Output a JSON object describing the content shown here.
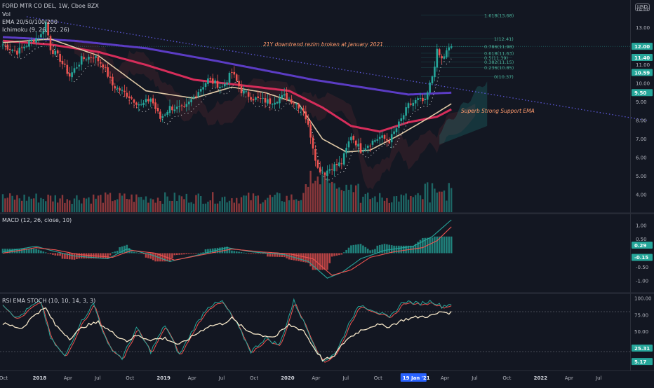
{
  "header": {
    "symbol": "FORD MTR CO DEL, 1W, Cboe BZX",
    "indicators": [
      "Vol",
      "EMA 20/50/100/200",
      "Ichimoku (9, 26, 52, 26)"
    ],
    "currency": "USD"
  },
  "colors": {
    "background": "#131722",
    "up": "#26a69a",
    "down": "#ef5350",
    "ema20": "#e0c9a6",
    "ema50": "#d62d5a",
    "ema200": "#5b3cc4",
    "trendline": "#5b57d6",
    "macd": "#26a69a",
    "signal": "#ef5350",
    "rsi": "#f5e6c8"
  },
  "annotations": {
    "trend_broken": "21Y downtrend rezim broken at January 2021",
    "support": "Superb Strong Support EMA"
  },
  "chart_data": [
    {
      "type": "candlestick",
      "yticks": [
        "14.00",
        "13.00",
        "12.00",
        "11.00",
        "10.00",
        "9.00",
        "8.00",
        "7.00",
        "6.00",
        "5.00",
        "4.00"
      ],
      "ylim": [
        3.5,
        14.2
      ],
      "price_labels": [
        {
          "text": "12.00",
          "value": 12.0,
          "color": "#26a69a"
        },
        {
          "text": "11.40",
          "value": 11.4,
          "color": "#26a69a"
        },
        {
          "text": "10.59",
          "value": 10.59,
          "color": "#26a69a"
        },
        {
          "text": "9.50",
          "value": 9.5,
          "color": "#26a69a"
        }
      ],
      "fib_levels": [
        {
          "label": "1.618(13.68)",
          "value": 13.68
        },
        {
          "label": "1(12.41)",
          "value": 12.41
        },
        {
          "label": "0.786(11.98)",
          "value": 11.98
        },
        {
          "label": "0.618(11.63)",
          "value": 11.63
        },
        {
          "label": "0.5(11.39)",
          "value": 11.39
        },
        {
          "label": "0.382(11.15)",
          "value": 11.15
        },
        {
          "label": "0.236(10.85)",
          "value": 10.85
        },
        {
          "label": "0(10.37)",
          "value": 10.37
        }
      ],
      "close_series_anchors": [
        [
          0,
          12.1
        ],
        [
          6,
          11.7
        ],
        [
          12,
          12.3
        ],
        [
          16,
          12.6
        ],
        [
          18,
          13.3
        ],
        [
          20,
          11.9
        ],
        [
          24,
          11.3
        ],
        [
          28,
          10.4
        ],
        [
          33,
          11.3
        ],
        [
          38,
          11.5
        ],
        [
          42,
          11.0
        ],
        [
          46,
          9.9
        ],
        [
          52,
          9.4
        ],
        [
          58,
          8.8
        ],
        [
          62,
          9.2
        ],
        [
          66,
          8.1
        ],
        [
          70,
          8.7
        ],
        [
          76,
          8.6
        ],
        [
          82,
          9.6
        ],
        [
          86,
          10.2
        ],
        [
          92,
          9.8
        ],
        [
          96,
          10.6
        ],
        [
          100,
          9.6
        ],
        [
          105,
          9.2
        ],
        [
          112,
          9.0
        ],
        [
          118,
          9.3
        ],
        [
          122,
          9.0
        ],
        [
          126,
          8.6
        ],
        [
          129,
          7.2
        ],
        [
          132,
          5.4
        ],
        [
          135,
          5.2
        ],
        [
          138,
          5.5
        ],
        [
          142,
          5.7
        ],
        [
          146,
          7.2
        ],
        [
          150,
          6.4
        ],
        [
          154,
          6.8
        ],
        [
          158,
          7.1
        ],
        [
          162,
          6.9
        ],
        [
          166,
          7.8
        ],
        [
          170,
          8.8
        ],
        [
          174,
          9.1
        ],
        [
          177,
          9.0
        ],
        [
          180,
          10.4
        ],
        [
          182,
          11.7
        ],
        [
          184,
          11.3
        ],
        [
          186,
          11.7
        ],
        [
          188,
          12.0
        ]
      ],
      "n_weeks": 189,
      "ema20_anchors": [
        [
          0,
          12.2
        ],
        [
          20,
          12.4
        ],
        [
          40,
          11.5
        ],
        [
          60,
          9.6
        ],
        [
          80,
          9.2
        ],
        [
          96,
          9.8
        ],
        [
          110,
          9.5
        ],
        [
          124,
          8.9
        ],
        [
          134,
          7.0
        ],
        [
          144,
          6.3
        ],
        [
          154,
          6.4
        ],
        [
          166,
          7.2
        ],
        [
          178,
          8.1
        ],
        [
          188,
          8.9
        ]
      ],
      "ema50_anchors": [
        [
          0,
          12.3
        ],
        [
          20,
          12.1
        ],
        [
          40,
          11.7
        ],
        [
          60,
          11.0
        ],
        [
          80,
          10.2
        ],
        [
          100,
          9.9
        ],
        [
          120,
          9.6
        ],
        [
          134,
          8.7
        ],
        [
          146,
          7.7
        ],
        [
          158,
          7.4
        ],
        [
          170,
          7.9
        ],
        [
          182,
          8.2
        ],
        [
          188,
          8.6
        ]
      ],
      "ema200_anchors": [
        [
          0,
          12.5
        ],
        [
          30,
          12.3
        ],
        [
          60,
          11.9
        ],
        [
          90,
          11.2
        ],
        [
          110,
          10.7
        ],
        [
          130,
          10.2
        ],
        [
          150,
          9.8
        ],
        [
          170,
          9.4
        ],
        [
          188,
          9.5
        ]
      ],
      "trendline": [
        [
          10,
          13.6
        ],
        [
          270,
          8.0
        ]
      ]
    },
    {
      "type": "histogram+line",
      "title": "MACD (12, 26, close, 10)",
      "yticks": [
        "1.00",
        "0.50",
        "-0.50",
        "-1.00"
      ],
      "ylim": [
        -1.3,
        1.3
      ],
      "price_labels": [
        {
          "text": "0.29",
          "value": 0.29,
          "color": "#26a69a"
        },
        {
          "text": "-0.15",
          "value": -0.15,
          "color": "#26a69a"
        }
      ],
      "macd_anchors": [
        [
          0,
          0.05
        ],
        [
          14,
          0.25
        ],
        [
          20,
          0.1
        ],
        [
          30,
          -0.1
        ],
        [
          44,
          -0.2
        ],
        [
          52,
          0.15
        ],
        [
          62,
          -0.05
        ],
        [
          70,
          -0.3
        ],
        [
          80,
          -0.1
        ],
        [
          94,
          0.2
        ],
        [
          104,
          0.05
        ],
        [
          118,
          -0.05
        ],
        [
          128,
          -0.3
        ],
        [
          136,
          -0.9
        ],
        [
          142,
          -0.7
        ],
        [
          150,
          -0.2
        ],
        [
          160,
          0.1
        ],
        [
          172,
          0.25
        ],
        [
          180,
          0.6
        ],
        [
          188,
          1.2
        ]
      ],
      "signal_anchors": [
        [
          0,
          0.0
        ],
        [
          14,
          0.2
        ],
        [
          22,
          0.12
        ],
        [
          32,
          -0.05
        ],
        [
          46,
          -0.15
        ],
        [
          54,
          0.1
        ],
        [
          64,
          0.0
        ],
        [
          72,
          -0.25
        ],
        [
          84,
          -0.05
        ],
        [
          96,
          0.15
        ],
        [
          108,
          0.05
        ],
        [
          120,
          -0.02
        ],
        [
          130,
          -0.2
        ],
        [
          138,
          -0.8
        ],
        [
          146,
          -0.6
        ],
        [
          154,
          -0.15
        ],
        [
          164,
          0.05
        ],
        [
          176,
          0.2
        ],
        [
          182,
          0.45
        ],
        [
          188,
          0.95
        ]
      ]
    },
    {
      "type": "line",
      "title": "RSI EMA STOCH (10, 10, 14, 3, 3)",
      "yticks": [
        "100.00",
        "75.00",
        "50.00"
      ],
      "ylim": [
        0,
        100
      ],
      "price_labels": [
        {
          "text": "25.31",
          "value": 25.31,
          "color": "#26a69a"
        },
        {
          "text": "5.17",
          "value": 5.17,
          "color": "#26a69a"
        }
      ],
      "rsi_anchors": [
        [
          0,
          62
        ],
        [
          8,
          55
        ],
        [
          14,
          78
        ],
        [
          18,
          85
        ],
        [
          22,
          60
        ],
        [
          28,
          40
        ],
        [
          34,
          58
        ],
        [
          40,
          64
        ],
        [
          46,
          48
        ],
        [
          52,
          36
        ],
        [
          56,
          44
        ],
        [
          62,
          38
        ],
        [
          68,
          40
        ],
        [
          74,
          30
        ],
        [
          80,
          44
        ],
        [
          86,
          58
        ],
        [
          92,
          62
        ],
        [
          96,
          70
        ],
        [
          102,
          52
        ],
        [
          108,
          45
        ],
        [
          114,
          42
        ],
        [
          120,
          60
        ],
        [
          126,
          52
        ],
        [
          130,
          28
        ],
        [
          134,
          8
        ],
        [
          138,
          10
        ],
        [
          144,
          38
        ],
        [
          150,
          52
        ],
        [
          156,
          60
        ],
        [
          162,
          58
        ],
        [
          168,
          68
        ],
        [
          174,
          72
        ],
        [
          180,
          74
        ],
        [
          184,
          80
        ],
        [
          188,
          78
        ]
      ],
      "stoch_anchors": [
        [
          0,
          92
        ],
        [
          6,
          70
        ],
        [
          12,
          88
        ],
        [
          16,
          95
        ],
        [
          20,
          40
        ],
        [
          26,
          12
        ],
        [
          32,
          60
        ],
        [
          38,
          92
        ],
        [
          44,
          30
        ],
        [
          50,
          10
        ],
        [
          56,
          55
        ],
        [
          62,
          20
        ],
        [
          68,
          60
        ],
        [
          74,
          15
        ],
        [
          80,
          55
        ],
        [
          86,
          88
        ],
        [
          92,
          95
        ],
        [
          98,
          62
        ],
        [
          104,
          20
        ],
        [
          110,
          40
        ],
        [
          116,
          30
        ],
        [
          122,
          96
        ],
        [
          128,
          50
        ],
        [
          134,
          5
        ],
        [
          140,
          20
        ],
        [
          146,
          70
        ],
        [
          150,
          90
        ],
        [
          156,
          82
        ],
        [
          162,
          70
        ],
        [
          168,
          96
        ],
        [
          174,
          92
        ],
        [
          180,
          96
        ],
        [
          184,
          88
        ],
        [
          188,
          92
        ]
      ]
    }
  ],
  "xaxis": {
    "labels": [
      {
        "text": "Oct",
        "week": 0
      },
      {
        "text": "2018",
        "week": 14
      },
      {
        "text": "Apr",
        "week": 27
      },
      {
        "text": "Jul",
        "week": 40
      },
      {
        "text": "Oct",
        "week": 53
      },
      {
        "text": "2019",
        "week": 66
      },
      {
        "text": "Apr",
        "week": 79
      },
      {
        "text": "Jul",
        "week": 92
      },
      {
        "text": "Oct",
        "week": 105
      },
      {
        "text": "2020",
        "week": 118
      },
      {
        "text": "Apr",
        "week": 131
      },
      {
        "text": "Jul",
        "week": 144
      },
      {
        "text": "Oct",
        "week": 157
      },
      {
        "text": "19 Jan '21",
        "week": 172
      },
      {
        "text": "Apr",
        "week": 185
      },
      {
        "text": "Jul",
        "week": 198
      },
      {
        "text": "Oct",
        "week": 211
      },
      {
        "text": "2022",
        "week": 224
      },
      {
        "text": "Apr",
        "week": 237
      },
      {
        "text": "Jul",
        "week": 250
      }
    ],
    "highlight": "19 Jan '21"
  }
}
